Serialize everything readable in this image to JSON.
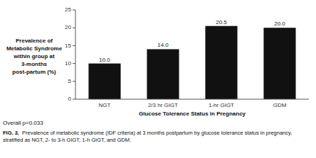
{
  "chart_data": {
    "type": "bar",
    "categories": [
      "NGT",
      "2/3 hr GIGT",
      "1-hr GIGT",
      "GDM"
    ],
    "values": [
      10.0,
      14.0,
      20.5,
      20.0
    ],
    "value_labels": [
      "10.0",
      "14.0",
      "20.5",
      "20.0"
    ],
    "data_labels": true,
    "color": "#111111",
    "xlabel": "Glucose Tolerance  Status in Pregnancy",
    "ylabel": "Prevalence of\nMetabolic Syndrome\nwithin group at\n3-months\npost-partum (%)",
    "ylim": [
      0,
      25
    ],
    "yticks": [
      0,
      5,
      10,
      15,
      20,
      25
    ],
    "annotations": [
      "Overall p=0.033",
      "FIG. 3.",
      "  Prevalence of metabolic syndrome (IDF criteria) at 3 months postpartum by glucose tolerance status in pregnancy, stratified as NGT, 2- to 3-h GIGT, 1-h GIGT, and GDM."
    ]
  }
}
